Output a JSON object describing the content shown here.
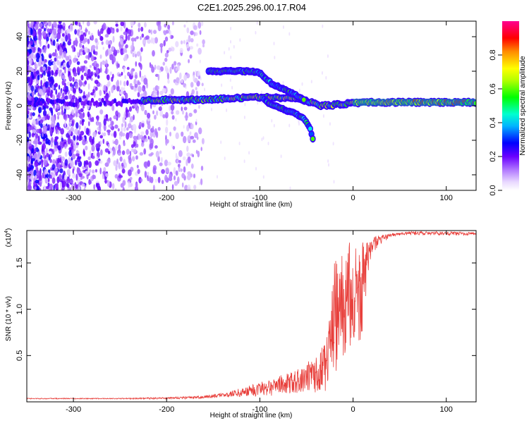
{
  "chart_data": [
    {
      "type": "heatmap",
      "title": "C2E1.2025.296.00.17.R04",
      "xlabel": "Height of straight line (km)",
      "ylabel": "Frequency (Hz)",
      "xlim": [
        -350,
        132
      ],
      "ylim": [
        -49,
        49
      ],
      "xticks": [
        -300,
        -200,
        -100,
        0,
        100
      ],
      "xtick_labels": [
        "-300",
        "-200",
        "-100",
        "0",
        "100"
      ],
      "yticks": [
        -40,
        -20,
        0,
        20,
        40
      ],
      "ytick_labels": [
        "-40",
        "-20",
        "0",
        "20",
        "40"
      ],
      "colorbar": {
        "label": "Normalized spectral amplitude",
        "range": [
          0,
          1
        ],
        "ticks": [
          0.0,
          0.2,
          0.4,
          0.6,
          0.8
        ],
        "tick_labels": [
          "0.0",
          "0.2",
          "0.4",
          "0.6",
          "0.8"
        ]
      },
      "features": [
        {
          "name": "carrier-line",
          "x": [
            -225,
            -200,
            -160,
            -120,
            -95,
            -80,
            -60,
            -45,
            -35,
            -20,
            0,
            20,
            50,
            80,
            100,
            132
          ],
          "y": [
            3,
            3.5,
            3.5,
            4.5,
            5,
            4.5,
            4,
            2,
            0,
            0.5,
            1.5,
            2,
            2,
            2,
            2,
            2
          ]
        },
        {
          "name": "upper-branch",
          "x": [
            -155,
            -150,
            -110,
            -100,
            -88,
            -80,
            -72,
            -65,
            -58,
            -52
          ],
          "y": [
            20,
            20,
            20,
            19,
            13,
            11,
            9,
            7,
            5,
            3
          ]
        },
        {
          "name": "lower-branch",
          "x": [
            -95,
            -90,
            -80,
            -70,
            -60,
            -52,
            -47,
            -44,
            -42
          ],
          "y": [
            4,
            1,
            -1,
            -3,
            -5,
            -8,
            -12,
            -17,
            -23
          ]
        }
      ]
    },
    {
      "type": "line",
      "xlabel": "Height of straight line (km)",
      "ylabel": "SNR (10 * v/v)",
      "ylabel_multiplier": "(x10",
      "ylabel_exponent": "4",
      "ylabel_close": ")",
      "xlim": [
        -350,
        132
      ],
      "ylim": [
        0,
        1.85
      ],
      "xticks": [
        -300,
        -200,
        -100,
        0,
        100
      ],
      "xtick_labels": [
        "-300",
        "-200",
        "-100",
        "0",
        "100"
      ],
      "yticks": [
        0.5,
        1.0,
        1.5
      ],
      "ytick_labels": [
        "0.5",
        "1.0",
        "1.5"
      ],
      "series_color": "#e8403c",
      "envelope": {
        "x": [
          -350,
          -250,
          -200,
          -170,
          -150,
          -130,
          -110,
          -100,
          -90,
          -80,
          -70,
          -60,
          -50,
          -40,
          -32,
          -25,
          -20,
          -15,
          -10,
          -5,
          0,
          5,
          10,
          15,
          20,
          30,
          40,
          60,
          80,
          100,
          132
        ],
        "low": [
          0.03,
          0.03,
          0.03,
          0.03,
          0.04,
          0.05,
          0.05,
          0.06,
          0.06,
          0.07,
          0.08,
          0.08,
          0.1,
          0.1,
          0.1,
          0.12,
          0.25,
          0.45,
          0.5,
          0.55,
          0.55,
          0.6,
          0.65,
          1.2,
          1.6,
          1.7,
          1.78,
          1.8,
          1.8,
          1.8,
          1.8
        ],
        "high": [
          0.04,
          0.04,
          0.05,
          0.06,
          0.08,
          0.12,
          0.18,
          0.22,
          0.25,
          0.28,
          0.32,
          0.35,
          0.42,
          0.52,
          0.6,
          0.9,
          1.55,
          1.55,
          1.6,
          1.75,
          1.72,
          1.7,
          1.72,
          1.74,
          1.78,
          1.8,
          1.82,
          1.84,
          1.84,
          1.84,
          1.83
        ]
      }
    }
  ]
}
